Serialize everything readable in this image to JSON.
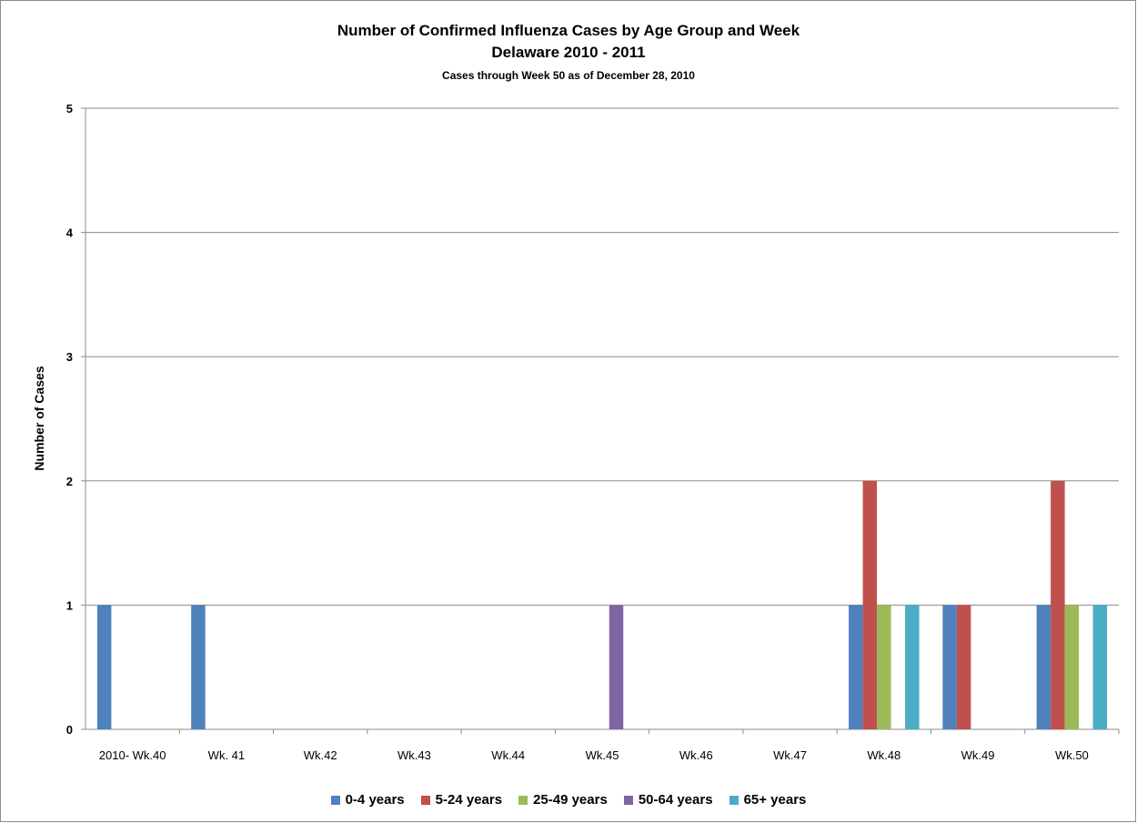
{
  "chart_data": {
    "type": "bar",
    "title": "Number of Confirmed Influenza Cases by Age Group and Week",
    "subtitle": "Delaware 2010 - 2011",
    "note": "Cases through Week 50 as of December 28, 2010",
    "xlabel": "",
    "ylabel": "Number of Cases",
    "ylim": [
      0,
      5
    ],
    "yticks": [
      0,
      1,
      2,
      3,
      4,
      5
    ],
    "grid": true,
    "legend_position": "bottom",
    "categories": [
      "2010- Wk.40",
      "Wk. 41",
      "Wk.42",
      "Wk.43",
      "Wk.44",
      "Wk.45",
      "Wk.46",
      "Wk.47",
      "Wk.48",
      "Wk.49",
      "Wk.50"
    ],
    "series": [
      {
        "name": "0-4 years",
        "color": "#4f81bd",
        "values": [
          1,
          1,
          0,
          0,
          0,
          0,
          0,
          0,
          1,
          1,
          1
        ]
      },
      {
        "name": "5-24 years",
        "color": "#c0504d",
        "values": [
          0,
          0,
          0,
          0,
          0,
          0,
          0,
          0,
          2,
          1,
          2
        ]
      },
      {
        "name": "25-49 years",
        "color": "#9bbb59",
        "values": [
          0,
          0,
          0,
          0,
          0,
          0,
          0,
          0,
          1,
          0,
          1
        ]
      },
      {
        "name": "50-64 years",
        "color": "#8064a2",
        "values": [
          0,
          0,
          0,
          0,
          0,
          1,
          0,
          0,
          0,
          0,
          0
        ]
      },
      {
        "name": "65+ years",
        "color": "#4bacc6",
        "values": [
          0,
          0,
          0,
          0,
          0,
          0,
          0,
          0,
          1,
          0,
          1
        ]
      }
    ]
  }
}
